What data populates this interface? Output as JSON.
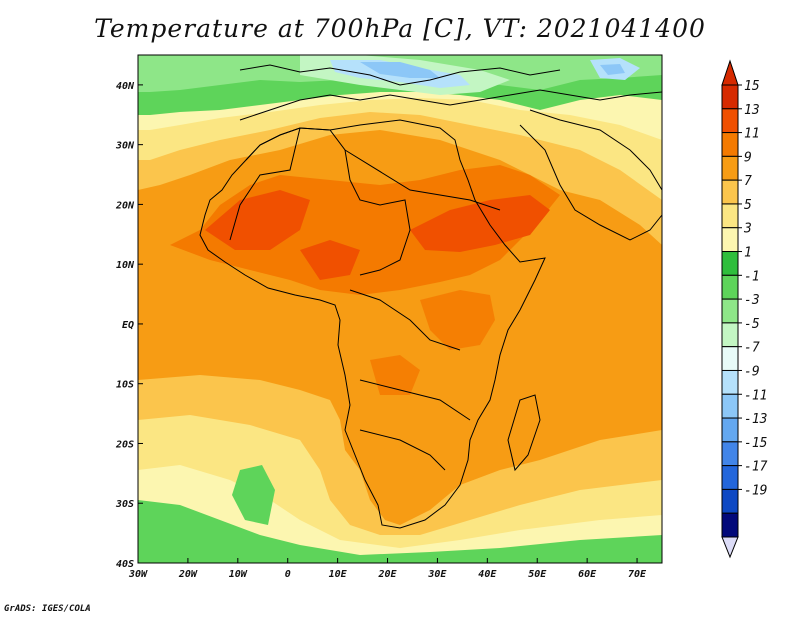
{
  "title": "Temperature at 700hPa [C], VT: 2021041400",
  "credit": "GrADS: IGES/COLA",
  "map": {
    "projection": "lat-lon",
    "lon_range": [
      -30,
      75
    ],
    "lat_range": [
      -40,
      45
    ],
    "lat_ticks": [
      {
        "value": 40,
        "label": "40N"
      },
      {
        "value": 30,
        "label": "30N"
      },
      {
        "value": 20,
        "label": "20N"
      },
      {
        "value": 10,
        "label": "10N"
      },
      {
        "value": 0,
        "label": "EQ"
      },
      {
        "value": -10,
        "label": "10S"
      },
      {
        "value": -20,
        "label": "20S"
      },
      {
        "value": -30,
        "label": "30S"
      },
      {
        "value": -40,
        "label": "40S"
      }
    ],
    "lon_ticks": [
      {
        "value": -30,
        "label": "30W"
      },
      {
        "value": -20,
        "label": "20W"
      },
      {
        "value": -10,
        "label": "10W"
      },
      {
        "value": 0,
        "label": "0"
      },
      {
        "value": 10,
        "label": "10E"
      },
      {
        "value": 20,
        "label": "20E"
      },
      {
        "value": 30,
        "label": "30E"
      },
      {
        "value": 40,
        "label": "40E"
      },
      {
        "value": 50,
        "label": "50E"
      },
      {
        "value": 60,
        "label": "60E"
      },
      {
        "value": 70,
        "label": "70E"
      }
    ]
  },
  "colorbar": {
    "levels": [
      "15",
      "13",
      "11",
      "9",
      "7",
      "5",
      "3",
      "1",
      "-1",
      "-3",
      "-5",
      "-7",
      "-9",
      "-11",
      "-13",
      "-15",
      "-17",
      "-19"
    ],
    "colors": [
      "#d62a00",
      "#f05000",
      "#f47a00",
      "#f79c14",
      "#fbc54c",
      "#fbe683",
      "#fcf6b0",
      "#2fbe3c",
      "#5ed45a",
      "#8ee688",
      "#c3f6c3",
      "#e8fbf8",
      "#b5e1fb",
      "#8cc7f7",
      "#64a8f0",
      "#4285e8",
      "#2366db",
      "#0d48c3",
      "#02097a"
    ],
    "top_arrow_color": "#d62a00",
    "bottom_arrow_color": "#dcdcf7"
  }
}
